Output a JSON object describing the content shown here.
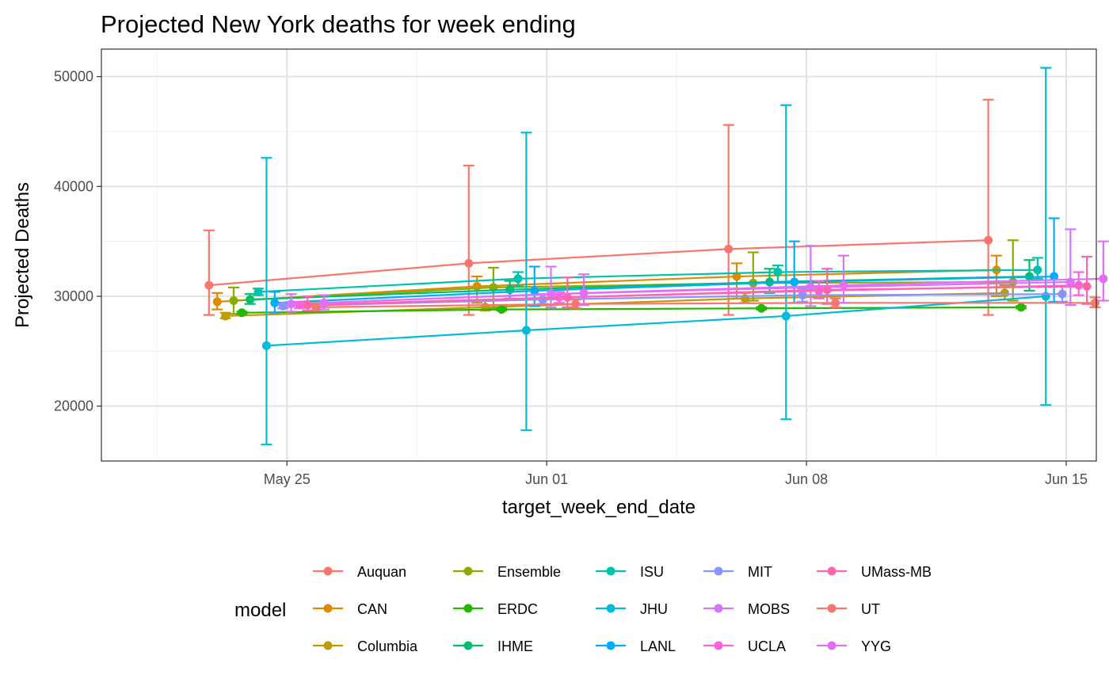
{
  "chart_data": {
    "type": "line",
    "title": "Projected New York deaths for week ending",
    "xlabel": "target_week_end_date",
    "ylabel": "Projected Deaths",
    "x_dates": [
      "2020-05-23",
      "2020-05-30",
      "2020-06-06",
      "2020-06-13"
    ],
    "xlim": [
      "2020-05-20",
      "2020-06-15"
    ],
    "ylim": [
      15000,
      52500
    ],
    "x_ticks": [
      {
        "label": "May 25",
        "date": "2020-05-25"
      },
      {
        "label": "Jun 01",
        "date": "2020-06-01"
      },
      {
        "label": "Jun 08",
        "date": "2020-06-08"
      },
      {
        "label": "Jun 15",
        "date": "2020-06-15"
      }
    ],
    "y_ticks": [
      20000,
      30000,
      40000,
      50000
    ],
    "y_tick_labels": [
      "20000",
      "30000",
      "40000",
      "50000"
    ],
    "grid": true,
    "legend_title": "model",
    "legend_position": "bottom",
    "series": [
      {
        "name": "Auquan",
        "color": "#F8766D",
        "values": [
          31000,
          33000,
          34300,
          35100
        ],
        "lower": [
          28300,
          28300,
          28300,
          28300
        ],
        "upper": [
          36000,
          41900,
          45600,
          47900
        ]
      },
      {
        "name": "CAN",
        "color": "#E18A00",
        "values": [
          29500,
          30900,
          31800,
          32400
        ],
        "lower": [
          28800,
          29400,
          29800,
          30000
        ],
        "upper": [
          30300,
          31800,
          33000,
          33700
        ]
      },
      {
        "name": "Columbia",
        "color": "#BE9C00",
        "values": [
          28200,
          29000,
          29800,
          30300
        ],
        "lower": [
          28000,
          28700,
          29400,
          29700
        ],
        "upper": [
          28500,
          29600,
          30300,
          31000
        ]
      },
      {
        "name": "Ensemble",
        "color": "#8CAB00",
        "values": [
          29600,
          30800,
          31200,
          31300
        ],
        "lower": [
          28400,
          28900,
          29600,
          29600
        ],
        "upper": [
          30800,
          32600,
          34000,
          35100
        ]
      },
      {
        "name": "ERDC",
        "color": "#24B700",
        "values": [
          28500,
          28800,
          28900,
          29000
        ],
        "lower": [
          28400,
          28700,
          28800,
          28900
        ],
        "upper": [
          28600,
          28900,
          29000,
          29100
        ]
      },
      {
        "name": "IHME",
        "color": "#00BE70",
        "values": [
          29700,
          30600,
          31300,
          31800
        ],
        "lower": [
          29300,
          29800,
          30300,
          30500
        ],
        "upper": [
          30200,
          31400,
          32500,
          33300
        ]
      },
      {
        "name": "ISU",
        "color": "#00C1AB",
        "values": [
          30400,
          31600,
          32200,
          32400
        ],
        "lower": [
          30100,
          30900,
          31300,
          31600
        ],
        "upper": [
          30700,
          32200,
          32800,
          33500
        ]
      },
      {
        "name": "JHU",
        "color": "#00BBDA",
        "values": [
          25500,
          26900,
          28200,
          30000
        ],
        "lower": [
          16500,
          17800,
          18800,
          20100
        ],
        "upper": [
          42600,
          44900,
          47400,
          50800
        ]
      },
      {
        "name": "LANL",
        "color": "#00ACFC",
        "values": [
          29400,
          30500,
          31300,
          31800
        ],
        "lower": [
          28500,
          29100,
          29400,
          29500
        ],
        "upper": [
          30400,
          32700,
          35000,
          37100
        ]
      },
      {
        "name": "MIT",
        "color": "#8B93FF",
        "values": [
          29100,
          29700,
          30100,
          30200
        ],
        "lower": [
          28900,
          29300,
          29500,
          29500
        ],
        "upper": [
          29300,
          30200,
          30700,
          30900
        ]
      },
      {
        "name": "MOBS",
        "color": "#D575FE",
        "values": [
          29300,
          30200,
          30800,
          31300
        ],
        "lower": [
          28600,
          29000,
          29100,
          29200
        ],
        "upper": [
          30200,
          32700,
          34600,
          36100
        ]
      },
      {
        "name": "UCLA",
        "color": "#F962DD",
        "values": [
          29200,
          29900,
          30500,
          31000
        ],
        "lower": [
          28900,
          29400,
          29800,
          30100
        ],
        "upper": [
          29500,
          30400,
          31400,
          32200
        ]
      },
      {
        "name": "UMass-MB",
        "color": "#FF65AC",
        "values": [
          29200,
          29900,
          30600,
          30900
        ],
        "lower": [
          28700,
          29000,
          29300,
          29300
        ],
        "upper": [
          30000,
          31700,
          32500,
          33600
        ]
      },
      {
        "name": "UT",
        "color": "#F8766D",
        "values": [
          29000,
          29300,
          29400,
          29400
        ],
        "lower": [
          28700,
          28900,
          29000,
          29000
        ],
        "upper": [
          29400,
          29700,
          29800,
          29900
        ]
      },
      {
        "name": "YYG",
        "color": "#E36EF6",
        "values": [
          29400,
          30300,
          31000,
          31600
        ],
        "lower": [
          28800,
          29200,
          29400,
          29600
        ],
        "upper": [
          30100,
          32000,
          33700,
          35000
        ]
      }
    ]
  }
}
